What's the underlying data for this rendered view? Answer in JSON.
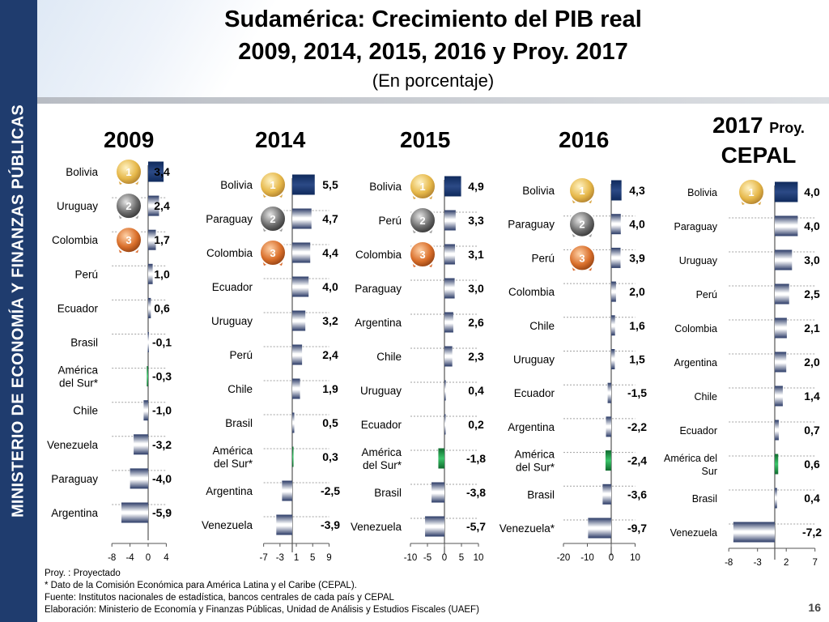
{
  "sidebar": {
    "text": "MINISTERIO DE ECONOMÍA Y FINANZAS PÚBLICAS"
  },
  "header": {
    "title_line1": "Sudamérica: Crecimiento del PIB real",
    "title_line2": "2009, 2014, 2015, 2016 y Proy. 2017",
    "subtitle": "(En porcentaje)"
  },
  "colors": {
    "sidebar": "#1f3c6e",
    "top_bar": "#1f3c6e",
    "south_america_bar": "#2e9e4f",
    "gold_medal": "#e6b84a",
    "silver_medal": "#6b6b6b",
    "bronze_medal": "#d96f2b"
  },
  "icons": [
    "gold-medal-icon",
    "silver-medal-icon",
    "bronze-medal-icon"
  ],
  "chart_data": [
    {
      "type": "bar",
      "orientation": "horizontal",
      "title": "2009",
      "categories": [
        "Bolivia",
        "Uruguay",
        "Colombia",
        "Perú",
        "Ecuador",
        "Brasil",
        "América del Sur*",
        "Chile",
        "Venezuela",
        "Paraguay",
        "Argentina"
      ],
      "values": [
        3.4,
        2.4,
        1.7,
        1.0,
        0.6,
        -0.1,
        -0.3,
        -1.0,
        -3.2,
        -4.0,
        -5.9
      ],
      "value_labels": [
        "3,4",
        "2,4",
        "1,7",
        "1,0",
        "0,6",
        "-0,1",
        "-0,3",
        "-1,0",
        "-3,2",
        "-4,0",
        "-5,9"
      ],
      "xlim": [
        -8,
        4
      ],
      "xticks": [
        "-8",
        "-4",
        "0",
        "4"
      ],
      "xtick_values": [
        -8,
        -4,
        0,
        4
      ]
    },
    {
      "type": "bar",
      "orientation": "horizontal",
      "title": "2014",
      "categories": [
        "Bolivia",
        "Paraguay",
        "Colombia",
        "Ecuador",
        "Uruguay",
        "Perú",
        "Chile",
        "Brasil",
        "América del Sur*",
        "Argentina",
        "Venezuela"
      ],
      "values": [
        5.5,
        4.7,
        4.4,
        4.0,
        3.2,
        2.4,
        1.9,
        0.5,
        0.3,
        -2.5,
        -3.9
      ],
      "value_labels": [
        "5,5",
        "4,7",
        "4,4",
        "4,0",
        "3,2",
        "2,4",
        "1,9",
        "0,5",
        "0,3",
        "-2,5",
        "-3,9"
      ],
      "xlim": [
        -7,
        9
      ],
      "xticks": [
        "-7",
        "-3",
        "1",
        "5",
        "9"
      ],
      "xtick_values": [
        -7,
        -3,
        1,
        5,
        9
      ]
    },
    {
      "type": "bar",
      "orientation": "horizontal",
      "title": "2015",
      "categories": [
        "Bolivia",
        "Perú",
        "Colombia",
        "Paraguay",
        "Argentina",
        "Chile",
        "Uruguay",
        "Ecuador",
        "América del Sur*",
        "Brasil",
        "Venezuela"
      ],
      "values": [
        4.9,
        3.3,
        3.1,
        3.0,
        2.6,
        2.3,
        0.4,
        0.2,
        -1.8,
        -3.8,
        -5.7
      ],
      "value_labels": [
        "4,9",
        "3,3",
        "3,1",
        "3,0",
        "2,6",
        "2,3",
        "0,4",
        "0,2",
        "-1,8",
        "-3,8",
        "-5,7"
      ],
      "xlim": [
        -10,
        10
      ],
      "xticks": [
        "-10",
        "-5",
        "0",
        "5",
        "10"
      ],
      "xtick_values": [
        -10,
        -5,
        0,
        5,
        10
      ]
    },
    {
      "type": "bar",
      "orientation": "horizontal",
      "title": "2016",
      "categories": [
        "Bolivia",
        "Paraguay",
        "Perú",
        "Colombia",
        "Chile",
        "Uruguay",
        "Ecuador",
        "Argentina",
        "América del Sur*",
        "Brasil",
        "Venezuela*"
      ],
      "values": [
        4.3,
        4.0,
        3.9,
        2.0,
        1.6,
        1.5,
        -1.5,
        -2.2,
        -2.4,
        -3.6,
        -9.7
      ],
      "value_labels": [
        "4,3",
        "4,0",
        "3,9",
        "2,0",
        "1,6",
        "1,5",
        "-1,5",
        "-2,2",
        "-2,4",
        "-3,6",
        "-9,7"
      ],
      "xlim": [
        -20,
        10
      ],
      "xticks": [
        "-20",
        "-10",
        "0",
        "10"
      ],
      "xtick_values": [
        -20,
        -10,
        0,
        10
      ]
    },
    {
      "type": "bar",
      "orientation": "horizontal",
      "title": "2017",
      "title_suffix": "Proy.",
      "title_line2": "CEPAL",
      "categories": [
        "Bolivia",
        "Paraguay",
        "Uruguay",
        "Perú",
        "Colombia",
        "Argentina",
        "Chile",
        "Ecuador",
        "América del Sur",
        "Brasil",
        "Venezuela"
      ],
      "values": [
        4.0,
        4.0,
        3.0,
        2.5,
        2.1,
        2.0,
        1.4,
        0.7,
        0.6,
        0.4,
        -7.2
      ],
      "value_labels": [
        "4,0",
        "4,0",
        "3,0",
        "2,5",
        "2,1",
        "2,0",
        "1,4",
        "0,7",
        "0,6",
        "0,4",
        "-7,2"
      ],
      "xlim": [
        -8,
        7
      ],
      "xticks": [
        "-8",
        "-3",
        "2",
        "7"
      ],
      "xtick_values": [
        -8,
        -3,
        2,
        7
      ]
    }
  ],
  "footnotes": {
    "line1": "Proy. : Proyectado",
    "line2": "* Dato de la Comisión Económica para América Latina y el Caribe (CEPAL).",
    "line3": "Fuente: Institutos nacionales de estadística, bancos centrales de cada país y CEPAL",
    "line4": "Elaboración: Ministerio de Economía y Finanzas Públicas, Unidad de Análisis y Estudios Fiscales (UAEF)"
  },
  "page_number": "16"
}
